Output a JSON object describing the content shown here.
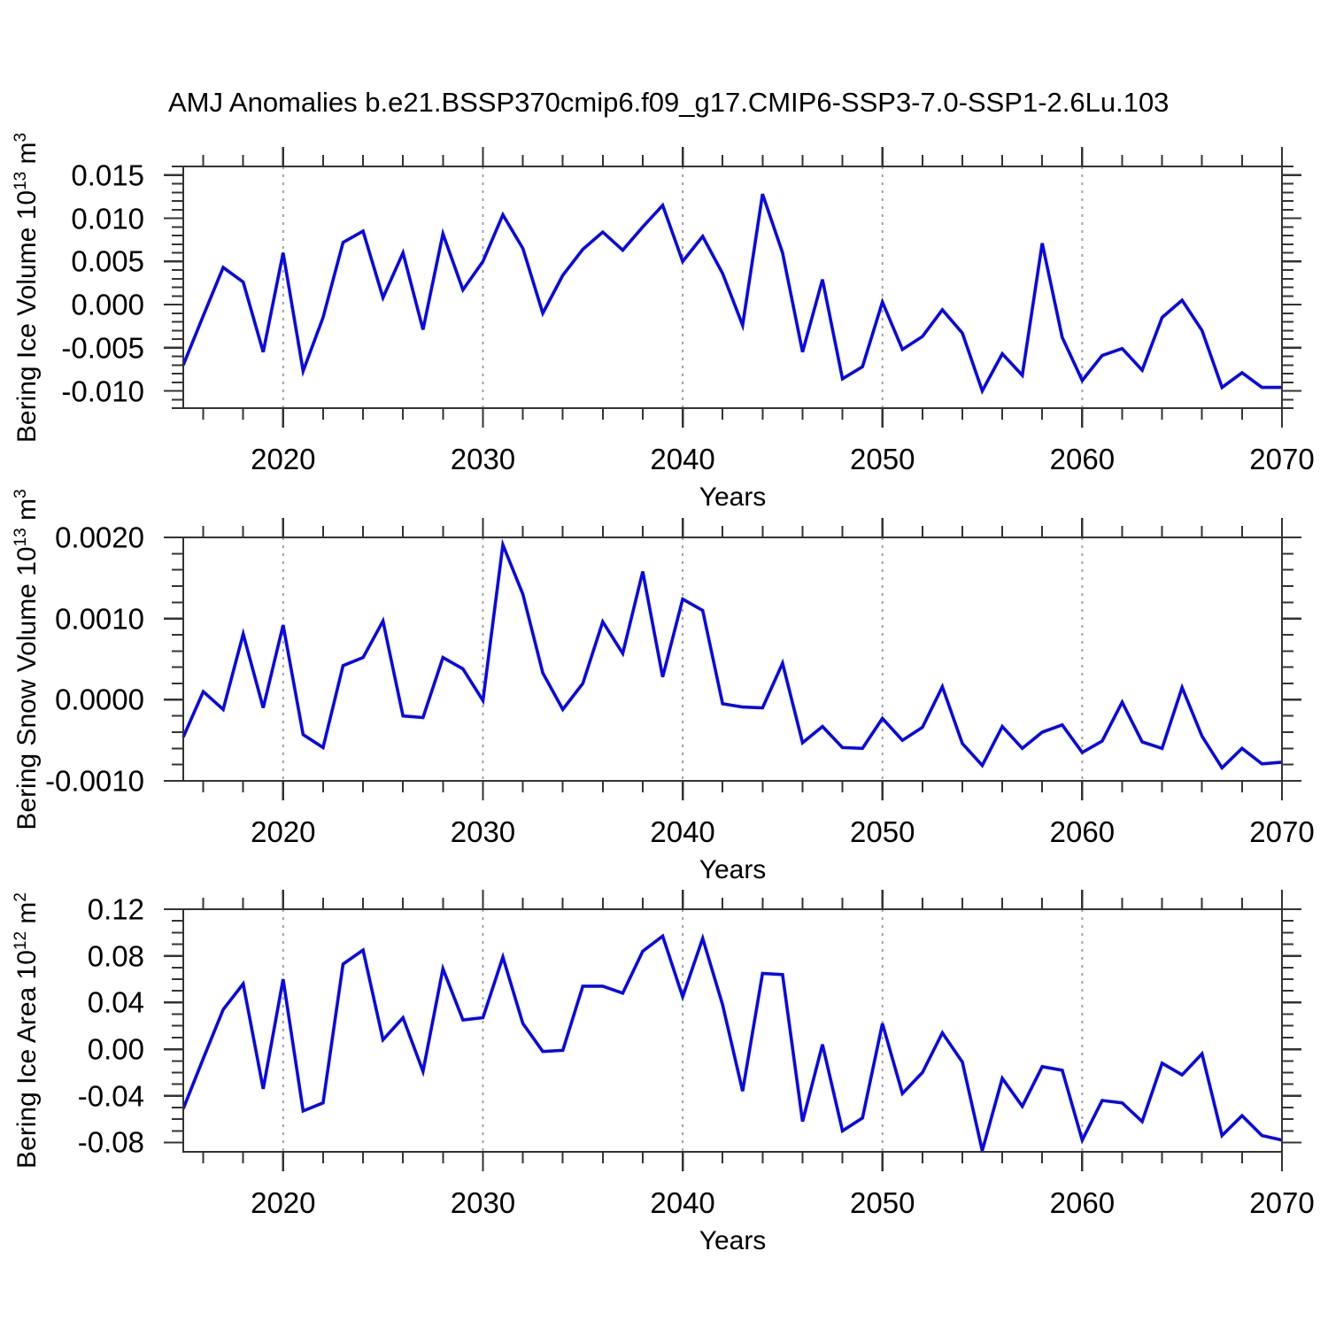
{
  "title": "AMJ Anomalies b.e21.BSSP370cmip6.f09_g17.CMIP6-SSP3-7.0-SSP1-2.6Lu.103",
  "colors": {
    "line": "#0808e8",
    "grid": "#999999",
    "frame": "#333333",
    "tick": "#333333",
    "text": "#000000"
  },
  "years": [
    2015,
    2016,
    2017,
    2018,
    2019,
    2020,
    2021,
    2022,
    2023,
    2024,
    2025,
    2026,
    2027,
    2028,
    2029,
    2030,
    2031,
    2032,
    2033,
    2034,
    2035,
    2036,
    2037,
    2038,
    2039,
    2040,
    2041,
    2042,
    2043,
    2044,
    2045,
    2046,
    2047,
    2048,
    2049,
    2050,
    2051,
    2052,
    2053,
    2054,
    2055,
    2056,
    2057,
    2058,
    2059,
    2060,
    2061,
    2062,
    2063,
    2064,
    2065,
    2066,
    2067,
    2068,
    2069,
    2070
  ],
  "xlabel": "Years",
  "xlim": [
    2015,
    2070
  ],
  "xticks": [
    2020,
    2030,
    2040,
    2050,
    2060,
    2070
  ],
  "xtick_labels": [
    "2020",
    "2030",
    "2040",
    "2050",
    "2060",
    "2070"
  ],
  "x_minor_step": 2,
  "grid_years": [
    2020,
    2030,
    2040,
    2050,
    2060
  ],
  "chart_data": [
    {
      "type": "line",
      "name": "ice-volume",
      "ylabel": "Bering Ice Volume 10^13 m^3",
      "ylabel_segments": [
        [
          "t",
          "Bering Ice Volume 10"
        ],
        [
          "s",
          "13"
        ],
        [
          "t",
          " m"
        ],
        [
          "s",
          "3"
        ]
      ],
      "ylim": [
        -0.012,
        0.016
      ],
      "yticks": [
        0.015,
        0.01,
        0.005,
        0.0,
        -0.005,
        -0.01
      ],
      "ytick_labels": [
        "0.015",
        "0.010",
        "0.005",
        "0.000",
        "-0.005",
        "-0.010"
      ],
      "y_minor_step": 0.001,
      "values": [
        -0.007,
        -0.0013,
        0.0043,
        0.0026,
        -0.0055,
        0.006,
        -0.0077,
        -0.0015,
        0.0072,
        0.0085,
        0.0008,
        0.006,
        -0.0029,
        0.0082,
        0.0017,
        0.005,
        0.0104,
        0.0065,
        -0.001,
        0.0034,
        0.0064,
        0.0084,
        0.0063,
        0.009,
        0.0115,
        0.005,
        0.0079,
        0.0036,
        -0.0024,
        0.0128,
        0.006,
        -0.0055,
        0.0029,
        -0.0086,
        -0.0072,
        0.0003,
        -0.0052,
        -0.0037,
        -0.0006,
        -0.0033,
        -0.01,
        -0.0057,
        -0.0082,
        0.0071,
        -0.0038,
        -0.0088,
        -0.0059,
        -0.0051,
        -0.0076,
        -0.0015,
        0.0005,
        -0.003,
        -0.0096,
        -0.0079,
        -0.0096,
        -0.0096
      ]
    },
    {
      "type": "line",
      "name": "snow-volume",
      "ylabel": "Bering Snow Volume 10^13 m^3",
      "ylabel_segments": [
        [
          "t",
          "Bering Snow Volume 10"
        ],
        [
          "s",
          "13"
        ],
        [
          "t",
          " m"
        ],
        [
          "s",
          "3"
        ]
      ],
      "ylim": [
        -0.001,
        0.002
      ],
      "yticks": [
        0.002,
        0.001,
        0.0,
        -0.001
      ],
      "ytick_labels": [
        "0.0020",
        "0.0010",
        "0.0000",
        "-0.0010"
      ],
      "y_minor_step": 0.0002,
      "values": [
        -0.00046,
        0.0001,
        -0.00012,
        0.00081,
        -0.0001,
        0.00092,
        -0.00043,
        -0.00059,
        0.00042,
        0.00052,
        0.00097,
        -0.0002,
        -0.00022,
        0.00052,
        0.00038,
        -1e-05,
        0.00191,
        0.0013,
        0.00033,
        -0.00012,
        0.0002,
        0.00096,
        0.00057,
        0.00158,
        0.00028,
        0.00124,
        0.0011,
        -5e-05,
        -9e-05,
        -0.0001,
        0.00045,
        -0.00053,
        -0.00033,
        -0.00059,
        -0.0006,
        -0.00023,
        -0.0005,
        -0.00034,
        0.00016,
        -0.00054,
        -0.00081,
        -0.00033,
        -0.0006,
        -0.0004,
        -0.00031,
        -0.00065,
        -0.00051,
        -3e-05,
        -0.00052,
        -0.0006,
        0.00015,
        -0.00045,
        -0.00084,
        -0.0006,
        -0.00079,
        -0.00077
      ]
    },
    {
      "type": "line",
      "name": "ice-area",
      "ylabel": "Bering Ice Area 10^12 m^2",
      "ylabel_segments": [
        [
          "t",
          "Bering Ice Area 10"
        ],
        [
          "s",
          "12"
        ],
        [
          "t",
          " m"
        ],
        [
          "s",
          "2"
        ]
      ],
      "ylim": [
        -0.088,
        0.12
      ],
      "yticks": [
        0.12,
        0.08,
        0.04,
        0.0,
        -0.04,
        -0.08
      ],
      "ytick_labels": [
        "0.12",
        "0.08",
        "0.04",
        "0.00",
        "-0.04",
        "-0.08"
      ],
      "y_minor_step": 0.01,
      "values": [
        -0.051,
        -0.008,
        0.034,
        0.056,
        -0.034,
        0.06,
        -0.053,
        -0.046,
        0.073,
        0.085,
        0.008,
        0.027,
        -0.019,
        0.069,
        0.025,
        0.027,
        0.079,
        0.022,
        -0.002,
        -0.001,
        0.054,
        0.054,
        0.048,
        0.084,
        0.097,
        0.045,
        0.095,
        0.038,
        -0.036,
        0.065,
        0.064,
        -0.062,
        0.004,
        -0.07,
        -0.059,
        0.022,
        -0.038,
        -0.02,
        0.014,
        -0.011,
        -0.087,
        -0.025,
        -0.049,
        -0.015,
        -0.018,
        -0.078,
        -0.044,
        -0.046,
        -0.062,
        -0.012,
        -0.022,
        -0.004,
        -0.074,
        -0.057,
        -0.074,
        -0.078
      ]
    }
  ]
}
